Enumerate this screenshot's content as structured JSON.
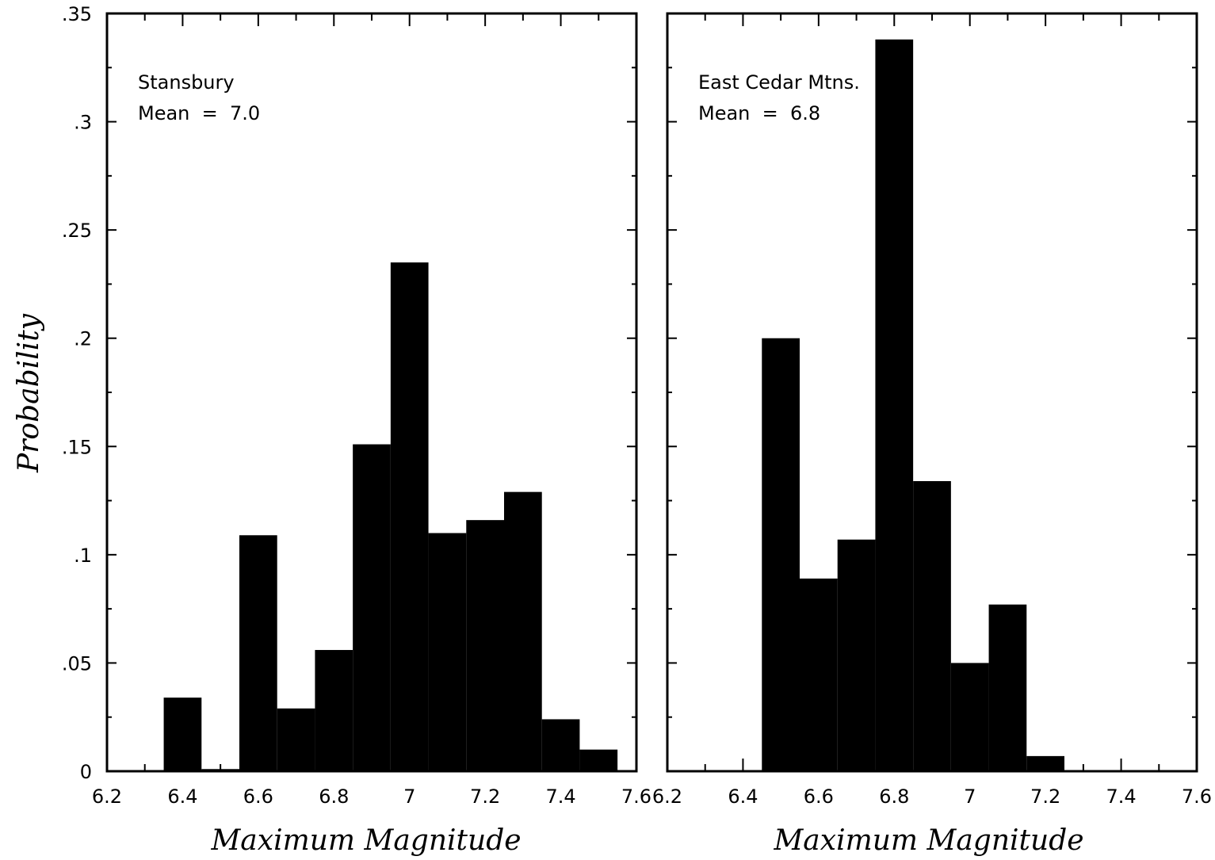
{
  "y_axis": {
    "label": "Probability",
    "ticks": [
      {
        "value": 0,
        "label": "0"
      },
      {
        "value": 0.05,
        "label": ".05"
      },
      {
        "value": 0.1,
        "label": ".1"
      },
      {
        "value": 0.15,
        "label": ".15"
      },
      {
        "value": 0.2,
        "label": ".2"
      },
      {
        "value": 0.25,
        "label": ".25"
      },
      {
        "value": 0.3,
        "label": ".3"
      },
      {
        "value": 0.35,
        "label": ".35"
      }
    ]
  },
  "chart_data": [
    {
      "type": "bar",
      "annotation": {
        "name": "Stansbury",
        "mean": "Mean  =  7.0"
      },
      "xlabel": "Maximum Magnitude",
      "ylabel": "Probability",
      "xlim": [
        6.2,
        7.6
      ],
      "ylim": [
        0,
        0.35
      ],
      "x_ticks": [
        {
          "value": 6.2,
          "label": "6.2"
        },
        {
          "value": 6.4,
          "label": "6.4"
        },
        {
          "value": 6.6,
          "label": "6.6"
        },
        {
          "value": 6.8,
          "label": "6.8"
        },
        {
          "value": 7.0,
          "label": "7"
        },
        {
          "value": 7.2,
          "label": "7.2"
        },
        {
          "value": 7.4,
          "label": "7.4"
        },
        {
          "value": 7.6,
          "label": "7.6"
        }
      ],
      "bins": [
        6.4,
        6.5,
        6.6,
        6.7,
        6.8,
        6.9,
        7.0,
        7.1,
        7.2,
        7.3,
        7.4,
        7.5
      ],
      "bin_width": 0.1,
      "values": [
        0.034,
        0.001,
        0.109,
        0.029,
        0.056,
        0.151,
        0.235,
        0.11,
        0.116,
        0.129,
        0.024,
        0.01
      ]
    },
    {
      "type": "bar",
      "annotation": {
        "name": "East Cedar Mtns.",
        "mean": "Mean  =  6.8"
      },
      "xlabel": "Maximum Magnitude",
      "ylabel": "Probability",
      "xlim": [
        6.2,
        7.6
      ],
      "ylim": [
        0,
        0.35
      ],
      "x_ticks": [
        {
          "value": 6.2,
          "label": "6.2"
        },
        {
          "value": 6.4,
          "label": "6.4"
        },
        {
          "value": 6.6,
          "label": "6.6"
        },
        {
          "value": 6.8,
          "label": "6.8"
        },
        {
          "value": 7.0,
          "label": "7"
        },
        {
          "value": 7.2,
          "label": "7.2"
        },
        {
          "value": 7.4,
          "label": "7.4"
        },
        {
          "value": 7.6,
          "label": "7.6"
        }
      ],
      "bins": [
        6.5,
        6.6,
        6.7,
        6.8,
        6.9,
        7.0,
        7.1,
        7.2
      ],
      "bin_width": 0.1,
      "values": [
        0.2,
        0.089,
        0.107,
        0.338,
        0.134,
        0.05,
        0.077,
        0.007
      ]
    }
  ]
}
